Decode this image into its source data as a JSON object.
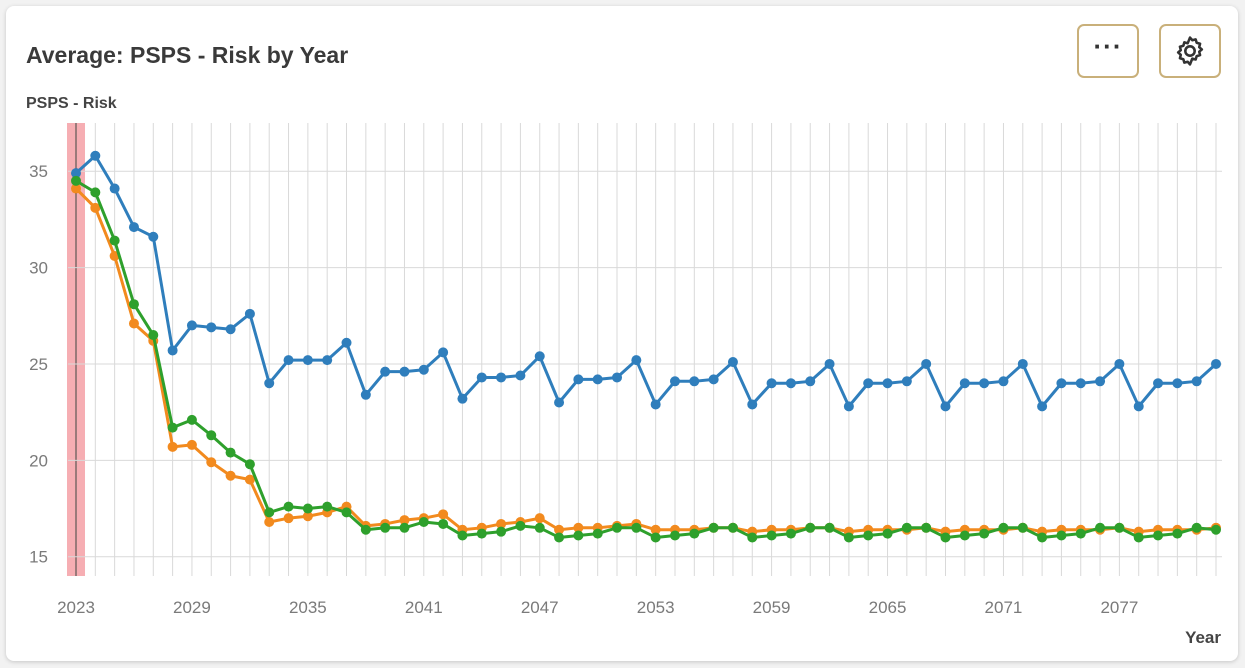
{
  "header": {
    "title": "Average: PSPS - Risk by Year",
    "more_icon": "more-dots-icon",
    "settings_icon": "gear-icon"
  },
  "colors": {
    "accent_border": "#c9b07a",
    "series_1": "#2f7ebc",
    "series_2": "#f28a1e",
    "series_3": "#2ea02c",
    "highlight_band": "#f4a0a6",
    "highlight_line": "#5a1a1a",
    "grid": "#d9d9d9"
  },
  "chart_data": {
    "type": "line",
    "title": "Average: PSPS - Risk by Year",
    "xlabel": "Year",
    "ylabel": "PSPS - Risk",
    "x": [
      2023,
      2024,
      2025,
      2026,
      2027,
      2028,
      2029,
      2030,
      2031,
      2032,
      2033,
      2034,
      2035,
      2036,
      2037,
      2038,
      2039,
      2040,
      2041,
      2042,
      2043,
      2044,
      2045,
      2046,
      2047,
      2048,
      2049,
      2050,
      2051,
      2052,
      2053,
      2054,
      2055,
      2056,
      2057,
      2058,
      2059,
      2060,
      2061,
      2062,
      2063,
      2064,
      2065,
      2066,
      2067,
      2068,
      2069,
      2070,
      2071,
      2072,
      2073,
      2074,
      2075,
      2076,
      2077,
      2078,
      2079,
      2080,
      2081,
      2082
    ],
    "xlim": [
      2023,
      2082
    ],
    "x_ticks": [
      2023,
      2029,
      2035,
      2041,
      2047,
      2053,
      2059,
      2065,
      2071,
      2077
    ],
    "ylim": [
      14,
      37.5
    ],
    "y_ticks": [
      15,
      20,
      25,
      30,
      35
    ],
    "grid": true,
    "highlight_year": 2023,
    "series": [
      {
        "values": [
          34.9,
          35.8,
          34.1,
          32.1,
          31.6,
          25.7,
          27.0,
          26.9,
          26.8,
          27.6,
          24.0,
          25.2,
          25.2,
          25.2,
          26.1,
          23.4,
          24.6,
          24.6,
          24.7,
          25.6,
          23.2,
          24.3,
          24.3,
          24.4,
          25.4,
          23.0,
          24.2,
          24.2,
          24.3,
          25.2,
          22.9,
          24.1,
          24.1,
          24.2,
          25.1,
          22.9,
          24.0,
          24.0,
          24.1,
          25.0,
          22.8,
          24.0,
          24.0,
          24.1,
          25.0,
          22.8,
          24.0,
          24.0,
          24.1,
          25.0,
          22.8,
          24.0,
          24.0,
          24.1,
          25.0,
          22.8,
          24.0,
          24.0,
          24.1,
          25.0
        ]
      },
      {
        "values": [
          34.1,
          33.1,
          30.6,
          27.1,
          26.2,
          20.7,
          20.8,
          19.9,
          19.2,
          19.0,
          16.8,
          17.0,
          17.1,
          17.3,
          17.6,
          16.6,
          16.7,
          16.9,
          17.0,
          17.2,
          16.4,
          16.5,
          16.7,
          16.8,
          17.0,
          16.4,
          16.5,
          16.5,
          16.6,
          16.7,
          16.4,
          16.4,
          16.4,
          16.5,
          16.5,
          16.3,
          16.4,
          16.4,
          16.5,
          16.5,
          16.3,
          16.4,
          16.4,
          16.4,
          16.5,
          16.3,
          16.4,
          16.4,
          16.4,
          16.5,
          16.3,
          16.4,
          16.4,
          16.4,
          16.5,
          16.3,
          16.4,
          16.4,
          16.4,
          16.5
        ]
      },
      {
        "values": [
          34.5,
          33.9,
          31.4,
          28.1,
          26.5,
          21.7,
          22.1,
          21.3,
          20.4,
          19.8,
          17.3,
          17.6,
          17.5,
          17.6,
          17.3,
          16.4,
          16.5,
          16.5,
          16.8,
          16.7,
          16.1,
          16.2,
          16.3,
          16.6,
          16.5,
          16.0,
          16.1,
          16.2,
          16.5,
          16.5,
          16.0,
          16.1,
          16.2,
          16.5,
          16.5,
          16.0,
          16.1,
          16.2,
          16.5,
          16.5,
          16.0,
          16.1,
          16.2,
          16.5,
          16.5,
          16.0,
          16.1,
          16.2,
          16.5,
          16.5,
          16.0,
          16.1,
          16.2,
          16.5,
          16.5,
          16.0,
          16.1,
          16.2,
          16.5,
          16.4
        ]
      }
    ]
  }
}
